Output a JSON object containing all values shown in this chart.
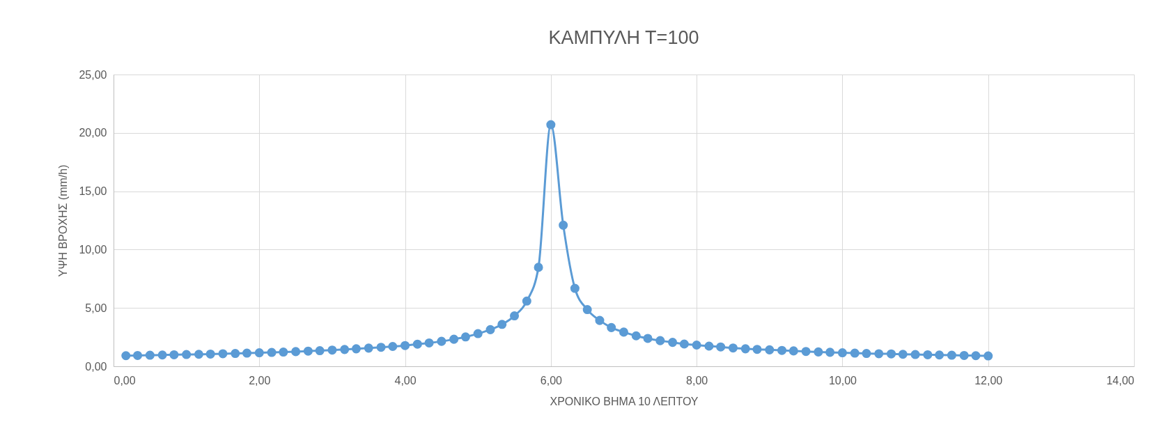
{
  "chart_data": {
    "type": "line",
    "title": "ΚΑΜΠΥΛΗ Τ=100",
    "xlabel": "ΧΡΟΝΙΚΟ ΒΗΜΑ 10 ΛΕΠΤΟΥ",
    "ylabel": "ΥΨΗ ΒΡΟΧΗΣ (mm/h)",
    "x": [
      0.17,
      0.33,
      0.5,
      0.67,
      0.83,
      1.0,
      1.17,
      1.33,
      1.5,
      1.67,
      1.83,
      2.0,
      2.17,
      2.33,
      2.5,
      2.67,
      2.83,
      3.0,
      3.17,
      3.33,
      3.5,
      3.67,
      3.83,
      4.0,
      4.17,
      4.33,
      4.5,
      4.67,
      4.83,
      5.0,
      5.17,
      5.33,
      5.5,
      5.67,
      5.83,
      6.0,
      6.17,
      6.33,
      6.5,
      6.67,
      6.83,
      7.0,
      7.17,
      7.33,
      7.5,
      7.67,
      7.83,
      8.0,
      8.17,
      8.33,
      8.5,
      8.67,
      8.83,
      9.0,
      9.17,
      9.33,
      9.5,
      9.67,
      9.83,
      10.0,
      10.17,
      10.33,
      10.5,
      10.67,
      10.83,
      11.0,
      11.17,
      11.33,
      11.5,
      11.67,
      11.83,
      12.0
    ],
    "series": [
      {
        "color": "#5b9bd5",
        "values": [
          0.91,
          0.93,
          0.95,
          0.97,
          0.99,
          1.01,
          1.03,
          1.05,
          1.08,
          1.1,
          1.13,
          1.16,
          1.19,
          1.22,
          1.26,
          1.3,
          1.34,
          1.39,
          1.44,
          1.5,
          1.56,
          1.63,
          1.7,
          1.78,
          1.9,
          2.0,
          2.14,
          2.32,
          2.52,
          2.8,
          3.14,
          3.59,
          4.32,
          5.59,
          8.48,
          20.7,
          12.09,
          6.68,
          4.86,
          3.93,
          3.32,
          2.93,
          2.61,
          2.39,
          2.2,
          2.05,
          1.91,
          1.82,
          1.73,
          1.66,
          1.57,
          1.5,
          1.45,
          1.41,
          1.36,
          1.32,
          1.27,
          1.23,
          1.2,
          1.16,
          1.13,
          1.1,
          1.08,
          1.06,
          1.03,
          1.01,
          0.99,
          0.97,
          0.95,
          0.93,
          0.91,
          0.89
        ]
      }
    ],
    "xlim": [
      0,
      14
    ],
    "xticks": [
      {
        "value": 0,
        "label": "0,00"
      },
      {
        "value": 2,
        "label": "2,00"
      },
      {
        "value": 4,
        "label": "4,00"
      },
      {
        "value": 6,
        "label": "6,00"
      },
      {
        "value": 8,
        "label": "8,00"
      },
      {
        "value": 10,
        "label": "10,00"
      },
      {
        "value": 12,
        "label": "12,00"
      },
      {
        "value": 14,
        "label": "14,00"
      }
    ],
    "ylim": [
      0,
      25
    ],
    "yticks": [
      {
        "value": 0,
        "label": "0,00"
      },
      {
        "value": 5,
        "label": "5,00"
      },
      {
        "value": 10,
        "label": "10,00"
      },
      {
        "value": 15,
        "label": "15,00"
      },
      {
        "value": 20,
        "label": "20,00"
      },
      {
        "value": 25,
        "label": "25,00"
      }
    ],
    "grid": true,
    "marker": "circle",
    "line_style": "solid"
  }
}
